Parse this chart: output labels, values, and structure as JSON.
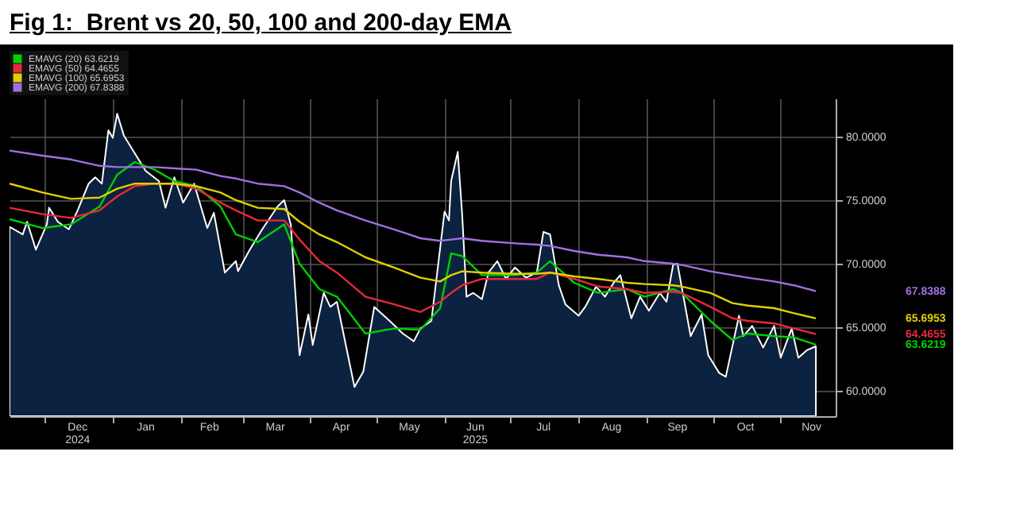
{
  "chart_data": {
    "type": "line",
    "title": "Fig 1:  Brent vs 20, 50, 100 and 200-day EMA",
    "x": [
      "2024-11-15",
      "2024-11-30",
      "2024-12-13",
      "2024-12-26",
      "2025-01-03",
      "2025-01-11",
      "2025-01-20",
      "2025-01-29",
      "2025-02-08",
      "2025-02-19",
      "2025-02-26",
      "2025-03-08",
      "2025-03-20",
      "2025-03-27",
      "2025-04-05",
      "2025-04-13",
      "2025-04-26",
      "2025-05-09",
      "2025-05-21",
      "2025-05-30",
      "2025-06-04",
      "2025-06-09",
      "2025-06-18",
      "2025-07-03",
      "2025-07-13",
      "2025-07-19",
      "2025-07-30",
      "2025-08-10",
      "2025-08-23",
      "2025-08-31",
      "2025-09-13",
      "2025-09-17",
      "2025-09-30",
      "2025-10-10",
      "2025-10-17",
      "2025-10-29",
      "2025-11-07",
      "2025-11-17"
    ],
    "series": [
      {
        "type": "area",
        "color": "#ffffff",
        "x": [
          "2024-11-15",
          "2024-11-21",
          "2024-11-23",
          "2024-11-27",
          "2024-12-02",
          "2024-12-03",
          "2024-12-07",
          "2024-12-12",
          "2024-12-16",
          "2024-12-21",
          "2024-12-24",
          "2024-12-27",
          "2024-12-30",
          "2025-01-01",
          "2025-01-03",
          "2025-01-06",
          "2025-01-12",
          "2025-01-16",
          "2025-01-22",
          "2025-01-25",
          "2025-01-29",
          "2025-02-02",
          "2025-02-07",
          "2025-02-13",
          "2025-02-16",
          "2025-02-21",
          "2025-02-26",
          "2025-02-27",
          "2025-03-04",
          "2025-03-10",
          "2025-03-17",
          "2025-03-20",
          "2025-03-23",
          "2025-03-27",
          "2025-03-31",
          "2025-04-02",
          "2025-04-07",
          "2025-04-10",
          "2025-04-13",
          "2025-04-21",
          "2025-04-25",
          "2025-04-30",
          "2025-05-07",
          "2025-05-13",
          "2025-05-18",
          "2025-05-21",
          "2025-05-26",
          "2025-05-29",
          "2025-06-01",
          "2025-06-03",
          "2025-06-04",
          "2025-06-07",
          "2025-06-09",
          "2025-06-11",
          "2025-06-14",
          "2025-06-18",
          "2025-06-21",
          "2025-06-25",
          "2025-06-29",
          "2025-07-03",
          "2025-07-08",
          "2025-07-13",
          "2025-07-16",
          "2025-07-19",
          "2025-07-23",
          "2025-07-26",
          "2025-08-01",
          "2025-08-04",
          "2025-08-09",
          "2025-08-13",
          "2025-08-17",
          "2025-08-20",
          "2025-08-25",
          "2025-08-29",
          "2025-09-02",
          "2025-09-07",
          "2025-09-10",
          "2025-09-13",
          "2025-09-15",
          "2025-09-21",
          "2025-09-26",
          "2025-09-29",
          "2025-10-04",
          "2025-10-07",
          "2025-10-13",
          "2025-10-15",
          "2025-10-19",
          "2025-10-24",
          "2025-10-29",
          "2025-11-01",
          "2025-11-06",
          "2025-11-09",
          "2025-11-13",
          "2025-11-17"
        ],
        "values": [
          72.9,
          72.3,
          73.3,
          71.1,
          73.1,
          74.4,
          73.3,
          72.7,
          74.2,
          76.3,
          76.8,
          76.3,
          80.5,
          79.9,
          81.8,
          80.1,
          78.4,
          77.3,
          76.5,
          74.4,
          76.8,
          74.8,
          76.3,
          72.8,
          74.0,
          69.3,
          70.2,
          69.4,
          71.0,
          72.7,
          74.5,
          75.0,
          73.1,
          62.8,
          66.0,
          63.6,
          67.7,
          66.6,
          67.0,
          60.3,
          61.5,
          66.6,
          65.5,
          64.5,
          63.9,
          64.9,
          65.5,
          69.8,
          74.1,
          73.4,
          76.5,
          78.8,
          73.9,
          67.4,
          67.7,
          67.2,
          69.3,
          70.2,
          68.8,
          69.7,
          68.9,
          69.3,
          72.5,
          72.3,
          68.3,
          66.8,
          65.9,
          66.6,
          68.2,
          67.4,
          68.5,
          69.1,
          65.7,
          67.4,
          66.3,
          67.7,
          67.0,
          69.9,
          70.0,
          64.3,
          66.0,
          62.8,
          61.4,
          61.1,
          65.9,
          64.3,
          65.1,
          63.4,
          65.1,
          62.6,
          64.9,
          62.6,
          63.2,
          63.5
        ]
      },
      {
        "name": "EMAVG (20) 63.6219",
        "color": "#00d000",
        "values": [
          73.5,
          72.8,
          73.1,
          74.5,
          77.0,
          78.0,
          77.4,
          76.5,
          76.1,
          74.5,
          72.3,
          71.7,
          73.1,
          70.0,
          68.0,
          67.4,
          64.5,
          64.9,
          64.8,
          66.5,
          70.8,
          70.6,
          69.1,
          69.1,
          69.3,
          70.2,
          68.5,
          67.7,
          68.0,
          67.4,
          68.0,
          67.7,
          65.5,
          64.0,
          64.5,
          64.3,
          64.2,
          63.6219
        ]
      },
      {
        "name": "EMAVG (50) 64.4655",
        "color": "#e8283c",
        "values": [
          74.4,
          73.9,
          73.6,
          74.2,
          75.3,
          76.1,
          76.3,
          76.3,
          75.9,
          74.8,
          74.2,
          73.4,
          73.4,
          71.9,
          70.2,
          69.3,
          67.4,
          66.8,
          66.2,
          67.0,
          67.7,
          68.3,
          68.8,
          68.8,
          68.8,
          69.3,
          68.8,
          68.2,
          68.0,
          67.7,
          67.8,
          67.7,
          66.6,
          65.7,
          65.5,
          65.3,
          64.9,
          64.4655
        ]
      },
      {
        "name": "EMAVG (100) 65.6953",
        "color": "#e0d000",
        "values": [
          76.3,
          75.6,
          75.1,
          75.2,
          75.9,
          76.3,
          76.3,
          76.3,
          76.1,
          75.6,
          75.0,
          74.4,
          74.3,
          73.3,
          72.3,
          71.7,
          70.5,
          69.7,
          68.9,
          68.6,
          69.1,
          69.4,
          69.3,
          69.2,
          69.2,
          69.3,
          69.0,
          68.8,
          68.5,
          68.4,
          68.3,
          68.2,
          67.7,
          66.9,
          66.7,
          66.5,
          66.1,
          65.6953
        ]
      },
      {
        "name": "EMAVG (200) 67.8388",
        "color": "#a070e0",
        "values": [
          78.9,
          78.5,
          78.2,
          77.7,
          77.6,
          77.6,
          77.6,
          77.5,
          77.4,
          76.9,
          76.7,
          76.3,
          76.1,
          75.6,
          74.8,
          74.2,
          73.4,
          72.7,
          72.0,
          71.8,
          71.9,
          72.0,
          71.8,
          71.6,
          71.5,
          71.4,
          71.0,
          70.7,
          70.5,
          70.2,
          70.0,
          69.9,
          69.4,
          69.1,
          68.9,
          68.6,
          68.3,
          67.8388
        ]
      }
    ],
    "xlim": [
      "2024-11-15",
      "2025-11-26"
    ],
    "ylim": [
      58,
      83
    ],
    "xticks": [
      {
        "value": "2024-12-01",
        "label": null
      },
      {
        "value": "2024-12-16",
        "label": "Dec\n2024"
      },
      {
        "value": "2025-01-01",
        "label": null
      },
      {
        "value": "2025-01-16",
        "label": "Jan"
      },
      {
        "value": "2025-02-01",
        "label": null
      },
      {
        "value": "2025-02-14",
        "label": "Feb"
      },
      {
        "value": "2025-03-01",
        "label": null
      },
      {
        "value": "2025-03-16",
        "label": "Mar"
      },
      {
        "value": "2025-04-01",
        "label": null
      },
      {
        "value": "2025-04-15",
        "label": "Apr"
      },
      {
        "value": "2025-05-01",
        "label": null
      },
      {
        "value": "2025-05-16",
        "label": "May"
      },
      {
        "value": "2025-06-01",
        "label": null
      },
      {
        "value": "2025-06-15",
        "label": "Jun\n2025"
      },
      {
        "value": "2025-07-01",
        "label": null
      },
      {
        "value": "2025-07-16",
        "label": "Jul"
      },
      {
        "value": "2025-08-01",
        "label": null
      },
      {
        "value": "2025-08-16",
        "label": "Aug"
      },
      {
        "value": "2025-09-01",
        "label": null
      },
      {
        "value": "2025-09-15",
        "label": "Sep"
      },
      {
        "value": "2025-10-01",
        "label": null
      },
      {
        "value": "2025-10-16",
        "label": "Oct"
      },
      {
        "value": "2025-11-01",
        "label": null
      },
      {
        "value": "2025-11-15",
        "label": "Nov"
      }
    ],
    "yticks": [
      {
        "value": 60,
        "label": "60.0000"
      },
      {
        "value": 65,
        "label": "65.0000"
      },
      {
        "value": 70,
        "label": "70.0000"
      },
      {
        "value": 75,
        "label": "75.0000"
      },
      {
        "value": 80,
        "label": "80.0000"
      }
    ],
    "grid": true,
    "legend": "top left",
    "annotations": [
      "63.6219",
      "64.4655",
      "65.6953",
      "67.8388"
    ]
  }
}
